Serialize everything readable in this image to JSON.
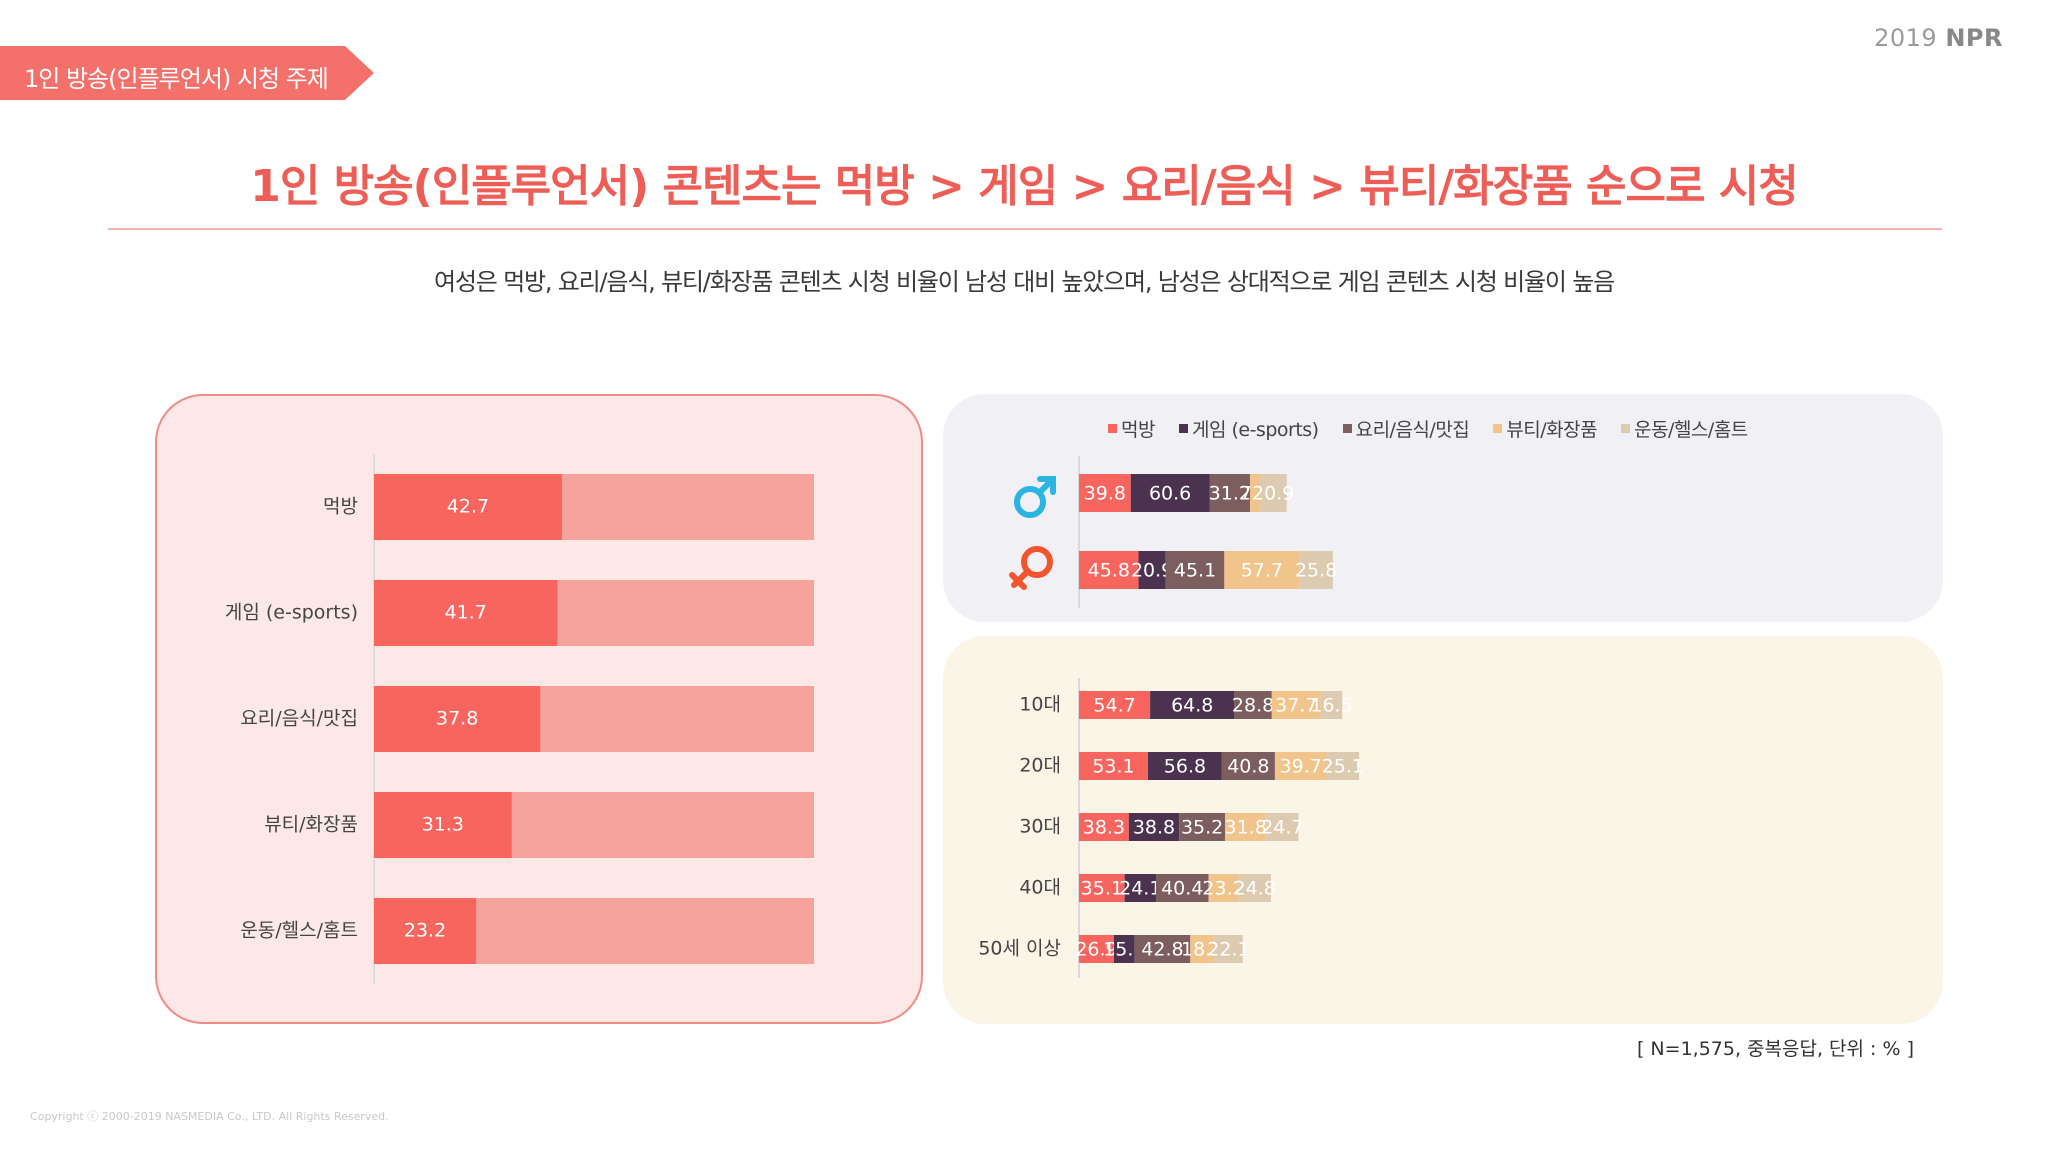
{
  "brand": {
    "year": "2019",
    "name": "NPR"
  },
  "section_tag": "1인 방송(인플루언서) 시청 주제",
  "headline": "1인 방송(인플루언서) 콘텐츠는 먹방 > 게임 > 요리/음식 > 뷰티/화장품 순으로 시청",
  "subtitle": "여성은 먹방, 요리/음식, 뷰티/화장품 콘텐츠 시청 비율이 남성 대비 높았으며, 남성은 상대적으로 게임 콘텐츠 시청 비율이 높음",
  "footnote": "[ N=1,575, 중복응답, 단위 : % ]",
  "copyright": "Copyright ⓒ 2000-2019 NASMEDIA Co., LTD. All Rights Reserved.",
  "colors": {
    "accent": "#ee5e57",
    "bar_overall": "#f8655f",
    "bar_overall_rest": "#f5a39c",
    "series": [
      "#f8655f",
      "#4b3350",
      "#7c5e5e",
      "#f1c48b",
      "#dccbb0"
    ]
  },
  "chart_data": [
    {
      "type": "bar",
      "orientation": "horizontal",
      "categories": [
        "먹방",
        "게임 (e-sports)",
        "요리/음식/맛집",
        "뷰티/화장품",
        "운동/헬스/홈트"
      ],
      "values": [
        42.7,
        41.7,
        37.8,
        31.3,
        23.2
      ],
      "xlim": [
        0,
        100
      ]
    },
    {
      "type": "bar",
      "orientation": "horizontal",
      "stacked": true,
      "categories": [
        "male-icon",
        "female-icon"
      ],
      "series": [
        {
          "name": "먹방",
          "values": [
            39.8,
            45.8
          ]
        },
        {
          "name": "게임 (e-sports)",
          "values": [
            60.6,
            20.9
          ]
        },
        {
          "name": "요리/음식/맛집",
          "values": [
            31.2,
            45.1
          ]
        },
        {
          "name": "뷰티/화장품",
          "values": [
            7.3,
            57.7
          ]
        },
        {
          "name": "운동/헬스/홈트",
          "values": [
            20.9,
            25.8
          ]
        }
      ],
      "legend_position": "top"
    },
    {
      "type": "bar",
      "orientation": "horizontal",
      "stacked": true,
      "categories": [
        "10대",
        "20대",
        "30대",
        "40대",
        "50세 이상"
      ],
      "series": [
        {
          "name": "먹방",
          "values": [
            54.7,
            53.1,
            38.3,
            35.1,
            26.9
          ]
        },
        {
          "name": "게임 (e-sports)",
          "values": [
            64.8,
            56.8,
            38.8,
            24.1,
            15.9
          ]
        },
        {
          "name": "요리/음식/맛집",
          "values": [
            28.8,
            40.8,
            35.2,
            40.4,
            42.8
          ]
        },
        {
          "name": "뷰티/화장품",
          "values": [
            37.7,
            39.7,
            31.8,
            23.2,
            18.3
          ]
        },
        {
          "name": "운동/헬스/홈트",
          "values": [
            16.5,
            25.1,
            24.7,
            24.8,
            22.1
          ]
        }
      ]
    }
  ]
}
